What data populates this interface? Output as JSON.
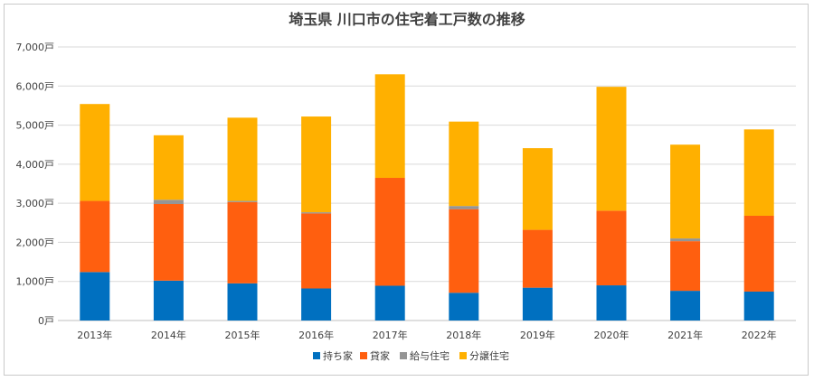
{
  "chart_data": {
    "type": "bar",
    "stacked": true,
    "title": "埼玉県 川口市の住宅着工戸数の推移",
    "categories": [
      "2013年",
      "2014年",
      "2015年",
      "2016年",
      "2017年",
      "2018年",
      "2019年",
      "2020年",
      "2021年",
      "2022年"
    ],
    "y_tick_labels": [
      "0戸",
      "1,000戸",
      "2,000戸",
      "3,000戸",
      "4,000戸",
      "5,000戸",
      "6,000戸",
      "7,000戸"
    ],
    "ylim": [
      0,
      7000
    ],
    "grid": true,
    "legend_position": "bottom",
    "series": [
      {
        "name": "持ち家",
        "color": "#0070c0",
        "values": [
          1240,
          1020,
          950,
          820,
          890,
          710,
          840,
          900,
          760,
          740
        ]
      },
      {
        "name": "貸家",
        "color": "#ff5f0f",
        "values": [
          1820,
          1960,
          2080,
          1920,
          2760,
          2140,
          1480,
          1910,
          1270,
          1940
        ]
      },
      {
        "name": "給与住宅",
        "color": "#959595",
        "values": [
          0,
          110,
          30,
          30,
          0,
          80,
          0,
          0,
          70,
          0
        ]
      },
      {
        "name": "分譲住宅",
        "color": "#ffb000",
        "values": [
          2480,
          1650,
          2130,
          2450,
          2650,
          2160,
          2090,
          3170,
          2400,
          2210
        ]
      }
    ]
  }
}
